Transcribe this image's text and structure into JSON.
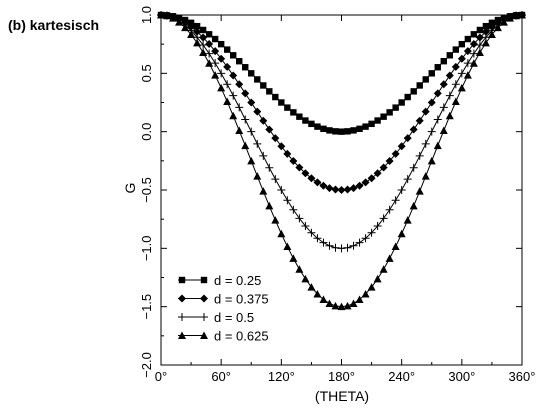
{
  "panel_label": "(b) kartesisch",
  "chart_data": {
    "type": "line",
    "xlabel": "(THETA)",
    "ylabel": "G",
    "xlim": [
      0,
      360
    ],
    "ylim": [
      -2.0,
      1.0
    ],
    "x_ticks": [
      0,
      60,
      120,
      180,
      240,
      300,
      360
    ],
    "x_tick_labels": [
      "0°",
      "60°",
      "120°",
      "180°",
      "240°",
      "300°",
      "360°"
    ],
    "y_ticks": [
      -2.0,
      -1.5,
      -1.0,
      -0.5,
      0.0,
      0.5,
      1.0
    ],
    "y_tick_labels": [
      "−2.0",
      "−1.5",
      "−1.0",
      "−0.5",
      "0.0",
      "0.5",
      "1.0"
    ],
    "grid": false,
    "legend_position": "bottom-left",
    "sample_step_deg": 6,
    "curve_formula": "G = 1 - d * (1 - cos(theta)) * 2",
    "series": [
      {
        "name": "d = 0.25",
        "d": 0.25,
        "min_value": 0.0,
        "marker": "square"
      },
      {
        "name": "d = 0.375",
        "d": 0.375,
        "min_value": -0.5,
        "marker": "diamond"
      },
      {
        "name": "d = 0.5",
        "d": 0.5,
        "min_value": -1.0,
        "marker": "plus"
      },
      {
        "name": "d = 0.625",
        "d": 0.625,
        "min_value": -1.5,
        "marker": "triangle"
      }
    ]
  }
}
